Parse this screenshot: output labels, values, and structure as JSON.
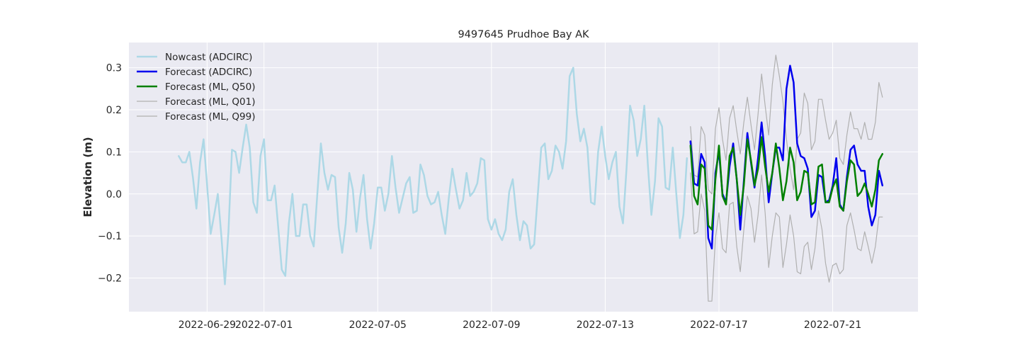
{
  "chart_data": {
    "type": "line",
    "title": "9497645 Prudhoe Bay AK",
    "xlabel": "",
    "ylabel": "Elevation (m)",
    "x_axis_type": "date",
    "xlim": [
      "2022-06-26T06:00",
      "2022-07-24T00:00"
    ],
    "ylim": [
      -0.28,
      0.36
    ],
    "x_ticks": [
      "2022-06-29",
      "2022-07-01",
      "2022-07-05",
      "2022-07-09",
      "2022-07-13",
      "2022-07-17",
      "2022-07-21"
    ],
    "y_ticks": [
      -0.2,
      -0.1,
      0.0,
      0.1,
      0.2,
      0.3
    ],
    "y_tick_labels": [
      "−0.2",
      "−0.1",
      "0.0",
      "0.1",
      "0.2",
      "0.3"
    ],
    "grid": true,
    "legend_position": "top-left",
    "series": [
      {
        "name": "Nowcast (ADCIRC)",
        "color": "#add8e6",
        "line_width": 2.5,
        "start": "2022-06-28T00:00",
        "step_hours": 3,
        "values": [
          0.09,
          0.075,
          0.075,
          0.1,
          0.04,
          -0.035,
          0.075,
          0.13,
          0.02,
          -0.095,
          -0.05,
          0.0,
          -0.1,
          -0.215,
          -0.09,
          0.105,
          0.1,
          0.05,
          0.11,
          0.165,
          0.11,
          -0.02,
          -0.045,
          0.09,
          0.13,
          -0.015,
          -0.015,
          0.02,
          -0.08,
          -0.18,
          -0.195,
          -0.07,
          0.0,
          -0.1,
          -0.1,
          -0.025,
          -0.025,
          -0.1,
          -0.125,
          0.0,
          0.12,
          0.05,
          0.01,
          0.045,
          0.04,
          -0.08,
          -0.14,
          -0.07,
          0.05,
          0.01,
          -0.09,
          -0.01,
          0.045,
          -0.06,
          -0.13,
          -0.07,
          0.015,
          0.015,
          -0.04,
          0.0,
          0.09,
          0.015,
          -0.045,
          -0.01,
          0.025,
          0.04,
          -0.045,
          -0.04,
          0.07,
          0.045,
          -0.005,
          -0.025,
          -0.02,
          0.005,
          -0.05,
          -0.095,
          -0.01,
          0.06,
          0.01,
          -0.035,
          -0.015,
          0.05,
          -0.005,
          0.005,
          0.025,
          0.085,
          0.08,
          -0.06,
          -0.085,
          -0.06,
          -0.095,
          -0.11,
          -0.085,
          0.005,
          0.035,
          -0.05,
          -0.11,
          -0.065,
          -0.075,
          -0.13,
          -0.12,
          -0.005,
          0.11,
          0.12,
          0.035,
          0.055,
          0.115,
          0.1,
          0.06,
          0.125,
          0.28,
          0.3,
          0.19,
          0.125,
          0.155,
          0.11,
          -0.02,
          -0.025,
          0.1,
          0.16,
          0.09,
          0.035,
          0.075,
          0.1,
          -0.03,
          -0.07,
          0.06,
          0.21,
          0.175,
          0.09,
          0.13,
          0.21,
          0.07,
          -0.05,
          0.03,
          0.18,
          0.16,
          0.015,
          0.01,
          0.11,
          0.0,
          -0.105,
          -0.05,
          0.085
        ]
      },
      {
        "name": "Forecast (ADCIRC)",
        "color": "#0000ee",
        "line_width": 2.5,
        "start": "2022-07-16T00:00",
        "step_hours": 3,
        "values": [
          0.125,
          0.025,
          0.02,
          0.095,
          0.075,
          -0.105,
          -0.13,
          0.05,
          0.1,
          0.0,
          -0.02,
          0.065,
          0.12,
          0.035,
          -0.085,
          0.03,
          0.145,
          0.075,
          0.015,
          0.085,
          0.17,
          0.09,
          -0.02,
          0.05,
          0.11,
          0.11,
          0.08,
          0.25,
          0.305,
          0.265,
          0.12,
          0.09,
          0.085,
          0.06,
          -0.055,
          -0.04,
          0.045,
          0.04,
          -0.02,
          -0.015,
          0.02,
          0.085,
          -0.025,
          -0.04,
          0.04,
          0.105,
          0.115,
          0.07,
          0.055,
          0.055,
          -0.03,
          -0.075,
          -0.05,
          0.055,
          0.02
        ]
      },
      {
        "name": "Forecast (ML, Q50)",
        "color": "#008000",
        "line_width": 2.5,
        "start": "2022-07-16T00:00",
        "step_hours": 3,
        "values": [
          0.115,
          -0.005,
          -0.025,
          0.07,
          0.06,
          -0.075,
          -0.085,
          0.035,
          0.115,
          -0.005,
          -0.025,
          0.09,
          0.11,
          0.035,
          -0.05,
          0.02,
          0.13,
          0.08,
          0.02,
          0.06,
          0.135,
          0.065,
          0.005,
          0.05,
          0.12,
          0.06,
          -0.015,
          0.03,
          0.11,
          0.075,
          -0.015,
          0.005,
          0.055,
          0.05,
          -0.025,
          -0.02,
          0.065,
          0.07,
          -0.02,
          -0.02,
          0.015,
          0.035,
          -0.03,
          -0.04,
          0.03,
          0.08,
          0.07,
          -0.005,
          0.005,
          0.025,
          0.0,
          -0.03,
          0.01,
          0.08,
          0.095
        ]
      },
      {
        "name": "Forecast (ML, Q01)",
        "color": "#b0b0b0",
        "line_width": 1.2,
        "start": "2022-07-16T00:00",
        "step_hours": 3,
        "values": [
          0.05,
          -0.095,
          -0.09,
          0.0,
          -0.04,
          -0.255,
          -0.255,
          -0.105,
          -0.045,
          -0.13,
          -0.14,
          -0.025,
          -0.02,
          -0.125,
          -0.185,
          -0.085,
          -0.005,
          -0.035,
          -0.115,
          -0.05,
          0.045,
          -0.045,
          -0.175,
          -0.1,
          -0.045,
          -0.055,
          -0.175,
          -0.12,
          -0.05,
          -0.1,
          -0.185,
          -0.19,
          -0.125,
          -0.115,
          -0.18,
          -0.13,
          -0.04,
          -0.085,
          -0.165,
          -0.21,
          -0.17,
          -0.165,
          -0.19,
          -0.18,
          -0.075,
          -0.045,
          -0.085,
          -0.13,
          -0.135,
          -0.09,
          -0.125,
          -0.165,
          -0.125,
          -0.055,
          -0.055
        ]
      },
      {
        "name": "Forecast (ML, Q99)",
        "color": "#b0b0b0",
        "line_width": 1.2,
        "start": "2022-07-16T00:00",
        "step_hours": 3,
        "values": [
          0.16,
          0.045,
          0.04,
          0.16,
          0.14,
          0.01,
          0.0,
          0.155,
          0.205,
          0.13,
          0.08,
          0.18,
          0.21,
          0.15,
          0.095,
          0.17,
          0.23,
          0.165,
          0.105,
          0.19,
          0.285,
          0.21,
          0.14,
          0.26,
          0.33,
          0.28,
          0.22,
          0.13,
          0.06,
          0.01,
          0.13,
          0.145,
          0.24,
          0.215,
          0.105,
          0.125,
          0.225,
          0.225,
          0.175,
          0.13,
          0.145,
          0.175,
          0.085,
          0.07,
          0.14,
          0.195,
          0.155,
          0.155,
          0.13,
          0.17,
          0.13,
          0.13,
          0.17,
          0.265,
          0.23
        ]
      }
    ]
  }
}
